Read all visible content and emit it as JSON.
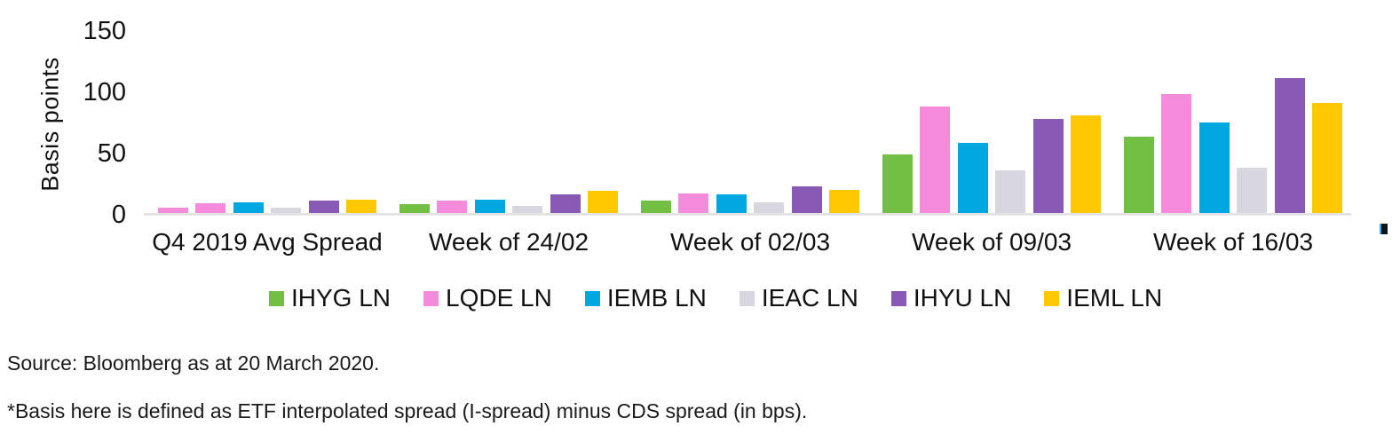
{
  "chart_data": {
    "type": "bar",
    "title": "",
    "ylabel": "Basis points",
    "xlabel": "",
    "ylim": [
      0,
      150
    ],
    "yticks": [
      0,
      50,
      100,
      150
    ],
    "grid": false,
    "legend_position": "bottom",
    "categories": [
      "Q4 2019 Avg Spread",
      "Week of 24/02",
      "Week of 02/03",
      "Week of 09/03",
      "Week of 16/03"
    ],
    "series": [
      {
        "name": "IHYG LN",
        "color": "#71BF43",
        "values": [
          4,
          7,
          10,
          48,
          62
        ]
      },
      {
        "name": "LQDE LN",
        "color": "#F48CDB",
        "values": [
          8,
          10,
          16,
          87,
          97
        ]
      },
      {
        "name": "IEMB LN",
        "color": "#00A7E1",
        "values": [
          9,
          11,
          15,
          57,
          74
        ]
      },
      {
        "name": "IEAC LN",
        "color": "#D8D7DF",
        "values": [
          4,
          6,
          9,
          35,
          37
        ]
      },
      {
        "name": "IHYU LN",
        "color": "#8859B5",
        "values": [
          10,
          15,
          22,
          77,
          110
        ]
      },
      {
        "name": "IEML LN",
        "color": "#FFC800",
        "values": [
          11,
          18,
          19,
          80,
          90
        ]
      }
    ],
    "bar_color_overrides": [
      {
        "category_index": 0,
        "series_index": 0,
        "color": "#F48CDB"
      }
    ]
  },
  "footer": {
    "source": "Source: Bloomberg as at 20 March 2020.",
    "note": "*Basis here is defined as ETF interpolated spread (I-spread) minus CDS spread (in bps)."
  }
}
